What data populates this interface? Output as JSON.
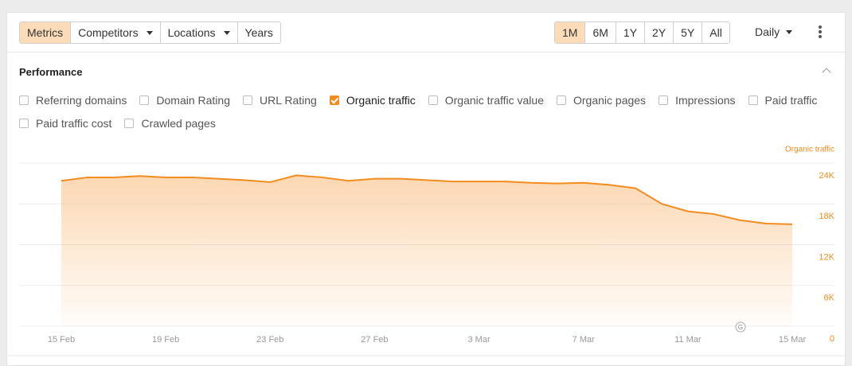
{
  "toolbar": {
    "tabs": [
      {
        "label": "Metrics",
        "dropdown": false,
        "selected": true
      },
      {
        "label": "Competitors",
        "dropdown": true,
        "selected": false
      },
      {
        "label": "Locations",
        "dropdown": true,
        "selected": false
      },
      {
        "label": "Years",
        "dropdown": false,
        "selected": false
      }
    ],
    "ranges": [
      {
        "label": "1M",
        "selected": true
      },
      {
        "label": "6M",
        "selected": false
      },
      {
        "label": "1Y",
        "selected": false
      },
      {
        "label": "2Y",
        "selected": false
      },
      {
        "label": "5Y",
        "selected": false
      },
      {
        "label": "All",
        "selected": false
      }
    ],
    "interval": "Daily"
  },
  "section_title": "Performance",
  "metrics": [
    {
      "label": "Referring domains",
      "checked": false
    },
    {
      "label": "Domain Rating",
      "checked": false
    },
    {
      "label": "URL Rating",
      "checked": false
    },
    {
      "label": "Organic traffic",
      "checked": true
    },
    {
      "label": "Organic traffic value",
      "checked": false
    },
    {
      "label": "Organic pages",
      "checked": false
    },
    {
      "label": "Impressions",
      "checked": false
    },
    {
      "label": "Paid traffic",
      "checked": false
    },
    {
      "label": "Paid traffic cost",
      "checked": false
    },
    {
      "label": "Crawled pages",
      "checked": false
    }
  ],
  "chart_data": {
    "type": "area",
    "categories": [
      "15 Feb",
      null,
      null,
      null,
      "19 Feb",
      null,
      null,
      null,
      "23 Feb",
      null,
      null,
      null,
      "27 Feb",
      null,
      null,
      null,
      "3 Mar",
      null,
      null,
      null,
      "7 Mar",
      null,
      null,
      null,
      "11 Mar",
      null,
      null,
      null,
      "15 Mar"
    ],
    "series": [
      {
        "name": "Organic traffic",
        "color": "#f28c1f",
        "values": [
          21400,
          21900,
          21900,
          22100,
          21900,
          21900,
          21700,
          21500,
          21200,
          22200,
          21900,
          21400,
          21700,
          21700,
          21500,
          21300,
          21300,
          21300,
          21100,
          21000,
          21100,
          20800,
          20300,
          18000,
          16900,
          16500,
          15600,
          15100,
          15000
        ]
      }
    ],
    "ylim": [
      0,
      24000
    ],
    "yticks": [
      0,
      {
        "value": 6000,
        "label": "6K"
      },
      {
        "value": 12000,
        "label": "12K"
      },
      {
        "value": 18000,
        "label": "18K"
      },
      {
        "value": 24000,
        "label": "24K"
      }
    ],
    "grid": true,
    "annotation": "G"
  }
}
